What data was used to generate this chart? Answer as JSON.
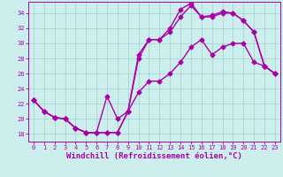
{
  "xlabel": "Windchill (Refroidissement éolien,°C)",
  "xlim": [
    -0.5,
    23.5
  ],
  "ylim": [
    17,
    35.5
  ],
  "yticks": [
    18,
    20,
    22,
    24,
    26,
    28,
    30,
    32,
    34
  ],
  "xticks": [
    0,
    1,
    2,
    3,
    4,
    5,
    6,
    7,
    8,
    9,
    10,
    11,
    12,
    13,
    14,
    15,
    16,
    17,
    18,
    19,
    20,
    21,
    22,
    23
  ],
  "background_color": "#cceeed",
  "grid_color": "#aad4d3",
  "line_color": "#aa00aa",
  "curve1_x": [
    0,
    1,
    2,
    3,
    4,
    5,
    6,
    7,
    8,
    9,
    10,
    11,
    12,
    13,
    14,
    15,
    16,
    17,
    18,
    19,
    20,
    21,
    22,
    23
  ],
  "curve1_y": [
    22.5,
    21.0,
    20.2,
    20.0,
    18.8,
    18.2,
    18.2,
    18.2,
    18.2,
    21.0,
    23.5,
    25.0,
    25.0,
    26.0,
    27.5,
    29.5,
    30.5,
    28.5,
    29.5,
    30.0,
    30.0,
    27.5,
    27.0,
    26.0
  ],
  "curve2_x": [
    0,
    1,
    2,
    3,
    4,
    5,
    6,
    7,
    8,
    9,
    10,
    11,
    12,
    13,
    14,
    15,
    16,
    17,
    18,
    19,
    20,
    21,
    22,
    23
  ],
  "curve2_y": [
    22.5,
    21.0,
    20.2,
    20.0,
    18.8,
    18.2,
    18.2,
    18.2,
    18.2,
    21.0,
    28.0,
    30.5,
    30.5,
    31.5,
    33.5,
    35.0,
    33.5,
    33.5,
    34.0,
    34.0,
    33.0,
    31.5,
    27.0,
    26.0
  ],
  "curve3_x": [
    0,
    1,
    2,
    3,
    4,
    5,
    6,
    7,
    8,
    9,
    10,
    11,
    12,
    13,
    14,
    15,
    16,
    17,
    18,
    19,
    20,
    21,
    22,
    23
  ],
  "curve3_y": [
    22.5,
    21.0,
    20.2,
    20.0,
    18.8,
    18.2,
    18.2,
    23.0,
    20.0,
    21.0,
    28.5,
    30.5,
    30.5,
    32.0,
    34.5,
    35.3,
    33.5,
    33.7,
    34.2,
    34.0,
    33.0,
    31.5,
    27.0,
    26.0
  ],
  "marker": "D",
  "markersize": 2.5,
  "linewidth": 1.0,
  "tick_fontsize": 5.0,
  "xlabel_fontsize": 6.5,
  "font_family": "monospace"
}
